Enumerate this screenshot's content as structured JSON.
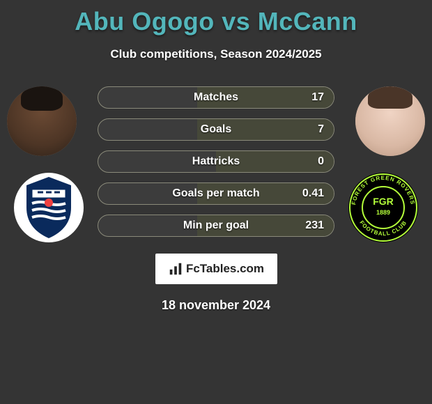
{
  "title": "Abu Ogogo vs McCann",
  "title_color": "#53b6bb",
  "subtitle": "Club competitions, Season 2024/2025",
  "date": "18 november 2024",
  "brand_text": "FcTables.com",
  "background_color": "#343434",
  "bar_border_color": "#8a8a7a",
  "bar_fill_color": "#464839",
  "stats": [
    {
      "label": "Matches",
      "left_value": null,
      "right_value": "17",
      "right_fill_pct": 58
    },
    {
      "label": "Goals",
      "left_value": null,
      "right_value": "7",
      "right_fill_pct": 58
    },
    {
      "label": "Hattricks",
      "left_value": null,
      "right_value": "0",
      "right_fill_pct": 50
    },
    {
      "label": "Goals per match",
      "left_value": null,
      "right_value": "0.41",
      "right_fill_pct": 58
    },
    {
      "label": "Min per goal",
      "left_value": null,
      "right_value": "231",
      "right_fill_pct": 58
    }
  ],
  "left_club": {
    "name": "Southend United",
    "badge_bg": "#ffffff",
    "badge_primary": "#0a2a5c",
    "badge_accent": "#f04040"
  },
  "right_club": {
    "name": "Forest Green Rovers",
    "badge_bg": "#000000",
    "badge_primary": "#b4ff3a"
  }
}
